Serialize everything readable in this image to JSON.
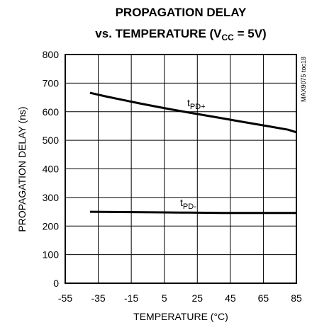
{
  "chart_data": {
    "type": "line",
    "title_line1": "PROPAGATION DELAY",
    "title_line2_prefix": "vs. TEMPERATURE (V",
    "title_line2_sub": "CC",
    "title_line2_suffix": " = 5V)",
    "xlabel": "TEMPERATURE (°C)",
    "ylabel": "PROPAGATION DELAY (ns)",
    "xlim": [
      -55,
      85
    ],
    "ylim": [
      0,
      800
    ],
    "xticks": [
      -55,
      -35,
      -15,
      5,
      25,
      45,
      65,
      85
    ],
    "yticks": [
      0,
      100,
      200,
      300,
      400,
      500,
      600,
      700,
      800
    ],
    "grid": true,
    "watermark": "MAX9075 toc18",
    "series": [
      {
        "name": "tPD+",
        "label_main": "t",
        "label_sub": "PD+",
        "color": "#000000",
        "x": [
          -40,
          -30,
          -20,
          -10,
          0,
          10,
          20,
          30,
          40,
          50,
          60,
          70,
          80,
          85
        ],
        "y": [
          666,
          653,
          641,
          629,
          618,
          607,
          597,
          587,
          577,
          567,
          557,
          547,
          537,
          528
        ]
      },
      {
        "name": "tPD-",
        "label_main": "t",
        "label_sub": "PD-",
        "color": "#000000",
        "x": [
          -40,
          -20,
          0,
          20,
          40,
          60,
          85
        ],
        "y": [
          250,
          249,
          248,
          247,
          246,
          246,
          246
        ]
      }
    ]
  }
}
